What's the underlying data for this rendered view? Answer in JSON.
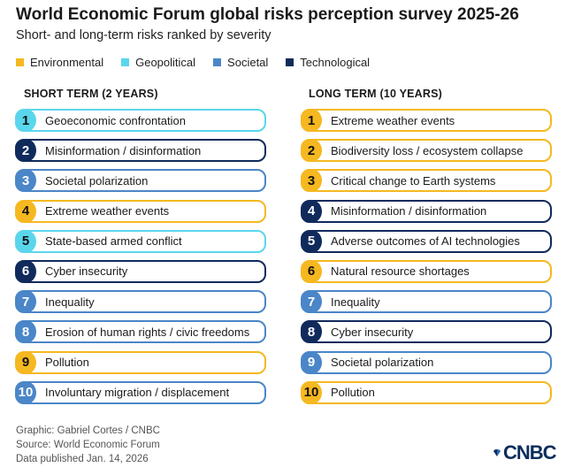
{
  "title": "World Economic Forum global risks perception survey 2025-26",
  "subtitle": "Short- and long-term risks ranked by severity",
  "colors": {
    "Environmental": "#f5b820",
    "Geopolitical": "#5ad6ec",
    "Societal": "#4a86c8",
    "Technological": "#102a5c"
  },
  "footer": {
    "graphic": "Graphic: Gabriel Cortes / CNBC",
    "source": "Source: World Economic Forum",
    "published": "Data published Jan. 14, 2026"
  },
  "logo": "CNBC",
  "chart_data": {
    "type": "table",
    "legend": [
      "Environmental",
      "Geopolitical",
      "Societal",
      "Technological"
    ],
    "columns": [
      {
        "header": "SHORT TERM (2 YEARS)",
        "items": [
          {
            "rank": "1",
            "label": "Geoeconomic confrontation",
            "category": "Geopolitical"
          },
          {
            "rank": "2",
            "label": "Misinformation / disinformation",
            "category": "Technological"
          },
          {
            "rank": "3",
            "label": "Societal polarization",
            "category": "Societal"
          },
          {
            "rank": "4",
            "label": "Extreme weather events",
            "category": "Environmental"
          },
          {
            "rank": "5",
            "label": "State-based armed conflict",
            "category": "Geopolitical"
          },
          {
            "rank": "6",
            "label": "Cyber insecurity",
            "category": "Technological"
          },
          {
            "rank": "7",
            "label": "Inequality",
            "category": "Societal"
          },
          {
            "rank": "8",
            "label": "Erosion of human rights / civic freedoms",
            "category": "Societal"
          },
          {
            "rank": "9",
            "label": "Pollution",
            "category": "Environmental"
          },
          {
            "rank": "10",
            "label": "Involuntary migration / displacement",
            "category": "Societal"
          }
        ]
      },
      {
        "header": "LONG TERM (10 YEARS)",
        "items": [
          {
            "rank": "1",
            "label": "Extreme weather events",
            "category": "Environmental"
          },
          {
            "rank": "2",
            "label": "Biodiversity loss / ecosystem collapse",
            "category": "Environmental"
          },
          {
            "rank": "3",
            "label": "Critical change to Earth systems",
            "category": "Environmental"
          },
          {
            "rank": "4",
            "label": "Misinformation / disinformation",
            "category": "Technological"
          },
          {
            "rank": "5",
            "label": "Adverse outcomes of AI technologies",
            "category": "Technological"
          },
          {
            "rank": "6",
            "label": "Natural resource shortages",
            "category": "Environmental"
          },
          {
            "rank": "7",
            "label": "Inequality",
            "category": "Societal"
          },
          {
            "rank": "8",
            "label": "Cyber insecurity",
            "category": "Technological"
          },
          {
            "rank": "9",
            "label": "Societal polarization",
            "category": "Societal"
          },
          {
            "rank": "10",
            "label": "Pollution",
            "category": "Environmental"
          }
        ]
      }
    ]
  }
}
